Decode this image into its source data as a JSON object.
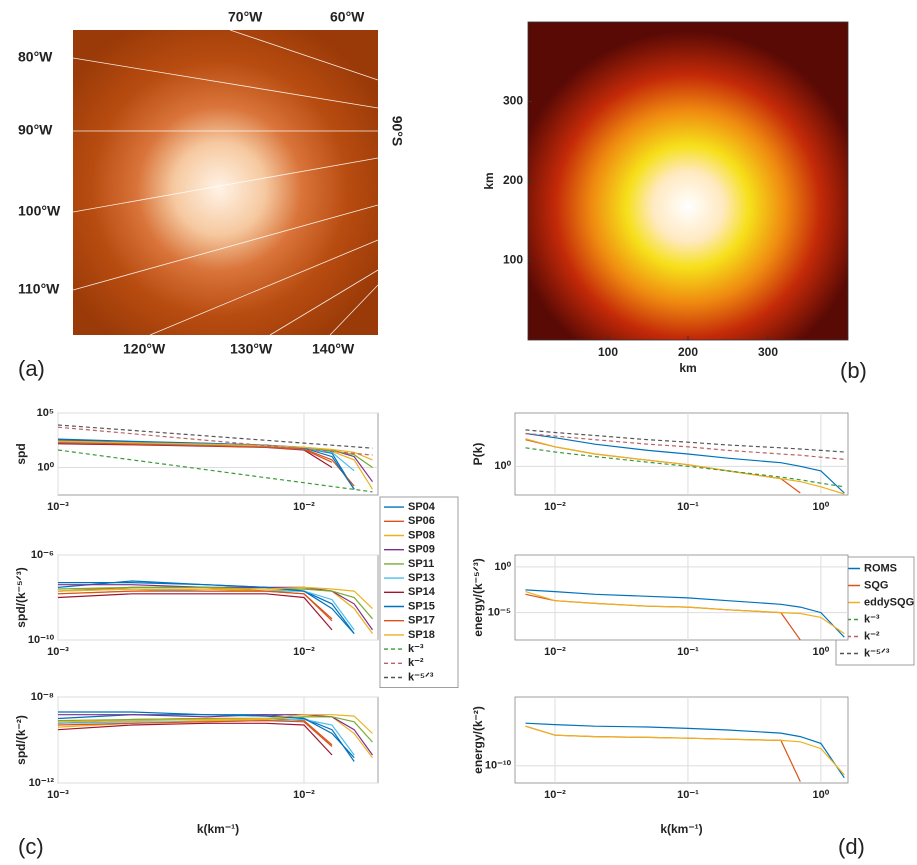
{
  "chart_data": [
    {
      "type": "map",
      "panel_label": "(a)",
      "labels": [
        "70°W",
        "60°W",
        "80°W",
        "90°W",
        "90°S",
        "100°W",
        "110°W",
        "120°W",
        "130°W",
        "140°W"
      ]
    },
    {
      "type": "heatmap",
      "panel_label": "(b)",
      "xlabel": "km",
      "ylabel": "km",
      "xlim": [
        0,
        400
      ],
      "ylim": [
        0,
        400
      ],
      "xticks": [
        100,
        200,
        300
      ],
      "yticks": [
        100,
        200,
        300
      ]
    },
    {
      "type": "line",
      "xlog": true,
      "ylog": true,
      "grid": true,
      "ylabel": "spd",
      "legend": "outside right",
      "xlim": [
        0.001,
        0.02
      ],
      "ylim": [
        0.003,
        100000
      ],
      "xticks": [
        {
          "value": 0.001,
          "label": "10⁻³"
        },
        {
          "value": 0.01,
          "label": "10⁻²"
        }
      ],
      "yticks": [
        {
          "value": 1,
          "label": "10⁰"
        },
        {
          "value": 100000,
          "label": "10⁵"
        }
      ],
      "x": [
        0.001,
        0.002,
        0.004,
        0.007,
        0.01,
        0.013,
        0.016,
        0.019
      ],
      "series": [
        {
          "name": "SP04",
          "color": "#0072BD",
          "values": [
            300,
            200,
            150,
            100,
            60,
            20,
            0.01,
            null
          ]
        },
        {
          "name": "SP06",
          "color": "#D95319",
          "values": [
            250,
            180,
            130,
            90,
            50,
            5,
            0.02,
            null
          ]
        },
        {
          "name": "SP08",
          "color": "#EDB120",
          "values": [
            200,
            150,
            110,
            80,
            50,
            30,
            5,
            0.01
          ]
        },
        {
          "name": "SP09",
          "color": "#7E2F8E",
          "values": [
            350,
            220,
            160,
            110,
            70,
            40,
            10,
            0.05
          ]
        },
        {
          "name": "SP11",
          "color": "#77AC30",
          "values": [
            280,
            190,
            140,
            95,
            60,
            35,
            15,
            1
          ]
        },
        {
          "name": "SP13",
          "color": "#4DBEEE",
          "values": [
            220,
            160,
            120,
            85,
            55,
            25,
            0.5,
            null
          ]
        },
        {
          "name": "SP14",
          "color": "#A2142F",
          "values": [
            150,
            120,
            90,
            70,
            40,
            1,
            null,
            null
          ]
        },
        {
          "name": "SP15",
          "color": "#0072BD",
          "values": [
            400,
            250,
            170,
            110,
            60,
            10,
            0.01,
            null
          ]
        },
        {
          "name": "SP17",
          "color": "#D95319",
          "values": [
            180,
            140,
            100,
            75,
            45,
            3,
            null,
            null
          ]
        },
        {
          "name": "SP18",
          "color": "#EDB120",
          "values": [
            260,
            190,
            140,
            100,
            70,
            45,
            25,
            5
          ]
        },
        {
          "name": "k⁻³",
          "color": "#3a9a3a",
          "style": "dashed",
          "values": [
            40,
            5,
            0.625,
            0.117,
            0.04,
            0.0182,
            0.00977,
            0.00583
          ]
        },
        {
          "name": "k⁻²",
          "color": "#c06060",
          "style": "dashed",
          "values": [
            5000,
            1250,
            312.5,
            102.04,
            50,
            29.59,
            19.53,
            13.85
          ]
        },
        {
          "name": "k⁻⁵ᐟ³",
          "color": "#555555",
          "style": "dashed",
          "values": [
            8000,
            2520,
            794,
            312.5,
            172.3,
            111,
            78.7,
            59.3
          ]
        }
      ]
    },
    {
      "type": "line",
      "xlog": true,
      "ylog": true,
      "grid": true,
      "ylabel": "spd/(k⁻⁵ᐟ³)",
      "xlim": [
        0.001,
        0.02
      ],
      "ylim": [
        1e-10,
        1e-06
      ],
      "xticks": [
        {
          "value": 0.001,
          "label": "10⁻³"
        },
        {
          "value": 0.01,
          "label": "10⁻²"
        }
      ],
      "yticks": [
        {
          "value": 1e-10,
          "label": "10⁻¹⁰"
        },
        {
          "value": 1e-06,
          "label": "10⁻⁶"
        }
      ],
      "x": [
        0.001,
        0.002,
        0.004,
        0.007,
        0.01,
        0.013,
        0.016,
        0.019
      ],
      "series": [
        {
          "color": "#0072BD",
          "values": [
            3e-08,
            6e-08,
            4e-08,
            3e-08,
            2e-08,
            5e-09,
            2e-10,
            null
          ]
        },
        {
          "color": "#D95319",
          "values": [
            2e-08,
            3e-08,
            3e-08,
            2e-08,
            1.5e-08,
            1e-09,
            null,
            null
          ]
        },
        {
          "color": "#EDB120",
          "values": [
            1.5e-08,
            2e-08,
            2.5e-08,
            2e-08,
            2.5e-08,
            2e-08,
            3e-09,
            2e-10
          ]
        },
        {
          "color": "#7E2F8E",
          "values": [
            4e-08,
            4e-08,
            3e-08,
            3e-08,
            3e-08,
            2e-08,
            5e-09,
            3e-10
          ]
        },
        {
          "color": "#77AC30",
          "values": [
            2.5e-08,
            3e-08,
            3e-08,
            2.5e-08,
            2.5e-08,
            2e-08,
            1e-08,
            1e-09
          ]
        },
        {
          "color": "#4DBEEE",
          "values": [
            2e-08,
            2.5e-08,
            2e-08,
            2e-08,
            2e-08,
            8e-09,
            3e-10,
            null
          ]
        },
        {
          "color": "#A2142F",
          "values": [
            1e-08,
            1.5e-08,
            1.5e-08,
            1.5e-08,
            1e-08,
            3e-10,
            null,
            null
          ]
        },
        {
          "color": "#0072BD",
          "values": [
            5e-08,
            5e-08,
            4e-08,
            3e-08,
            2e-08,
            3e-09,
            2e-10,
            null
          ]
        },
        {
          "color": "#D95319",
          "values": [
            1.5e-08,
            2e-08,
            2e-08,
            2e-08,
            1.5e-08,
            8e-10,
            null,
            null
          ]
        },
        {
          "color": "#EDB120",
          "values": [
            2e-08,
            2.5e-08,
            2.5e-08,
            2.5e-08,
            3e-08,
            2.5e-08,
            2e-08,
            3e-09
          ]
        }
      ]
    },
    {
      "type": "line",
      "xlog": true,
      "ylog": true,
      "grid": true,
      "ylabel": "spd/(k⁻²)",
      "xlabel": "k(km⁻¹)",
      "panel_label": "(c)",
      "xlim": [
        0.001,
        0.02
      ],
      "ylim": [
        1e-12,
        1e-08
      ],
      "xticks": [
        {
          "value": 0.001,
          "label": "10⁻³"
        },
        {
          "value": 0.01,
          "label": "10⁻²"
        }
      ],
      "yticks": [
        {
          "value": 1e-12,
          "label": "10⁻¹²"
        },
        {
          "value": 1e-08,
          "label": "10⁻⁸"
        }
      ],
      "x": [
        0.001,
        0.002,
        0.004,
        0.007,
        0.01,
        0.013,
        0.016,
        0.019
      ],
      "series": [
        {
          "color": "#0072BD",
          "values": [
            1e-09,
            1.5e-09,
            1.5e-09,
            1.5e-09,
            1e-09,
            3e-10,
            1e-11,
            null
          ]
        },
        {
          "color": "#D95319",
          "values": [
            6e-10,
            9e-10,
            1e-09,
            1e-09,
            8e-10,
            6e-11,
            null,
            null
          ]
        },
        {
          "color": "#EDB120",
          "values": [
            4e-10,
            6e-10,
            8e-10,
            9e-10,
            1.2e-09,
            1.2e-09,
            2e-10,
            1.5e-11
          ]
        },
        {
          "color": "#7E2F8E",
          "values": [
            1.5e-09,
            1.5e-09,
            1.2e-09,
            1.5e-09,
            1.5e-09,
            1.2e-09,
            3e-10,
            2e-11
          ]
        },
        {
          "color": "#77AC30",
          "values": [
            8e-10,
            9e-10,
            1e-09,
            1e-09,
            1.2e-09,
            1.2e-09,
            7e-10,
            8e-11
          ]
        },
        {
          "color": "#4DBEEE",
          "values": [
            6e-10,
            7e-10,
            7e-10,
            8e-10,
            9e-10,
            5e-10,
            2e-11,
            null
          ]
        },
        {
          "color": "#A2142F",
          "values": [
            3e-10,
            5e-10,
            6e-10,
            6e-10,
            5e-10,
            2e-11,
            null,
            null
          ]
        },
        {
          "color": "#0072BD",
          "values": [
            2e-09,
            2e-09,
            1.5e-09,
            1.3e-09,
            1e-09,
            2e-10,
            1.5e-11,
            null
          ]
        },
        {
          "color": "#D95319",
          "values": [
            5e-10,
            6e-10,
            7e-10,
            8e-10,
            7e-10,
            5e-11,
            null,
            null
          ]
        },
        {
          "color": "#EDB120",
          "values": [
            7e-10,
            8e-10,
            9e-10,
            1e-09,
            1.5e-09,
            1.5e-09,
            1.3e-09,
            2e-10
          ]
        }
      ]
    },
    {
      "type": "line",
      "xlog": true,
      "ylog": true,
      "grid": true,
      "ylabel": "P(k)",
      "legend": "outside right",
      "xlim": [
        0.005,
        1.6
      ],
      "ylim": [
        0.04,
        400
      ],
      "xticks": [
        {
          "value": 0.01,
          "label": "10⁻²"
        },
        {
          "value": 0.1,
          "label": "10⁻¹"
        },
        {
          "value": 1,
          "label": "10⁰"
        }
      ],
      "yticks": [
        {
          "value": 1,
          "label": "10⁰"
        }
      ],
      "x": [
        0.006,
        0.01,
        0.02,
        0.05,
        0.1,
        0.2,
        0.5,
        0.7,
        1,
        1.5
      ],
      "series": [
        {
          "name": "ROMS",
          "color": "#0072BD",
          "values": [
            40,
            25,
            12,
            6,
            4,
            2.5,
            1.5,
            1,
            0.6,
            0.05
          ]
        },
        {
          "name": "SQG",
          "color": "#D95319",
          "values": [
            20,
            9,
            4,
            2,
            1.2,
            0.6,
            0.25,
            0.05,
            null,
            null
          ]
        },
        {
          "name": "eddySQG",
          "color": "#EDB120",
          "values": [
            22,
            9,
            4,
            2,
            1.2,
            0.6,
            0.25,
            0.18,
            0.1,
            0.045
          ]
        },
        {
          "name": "k⁻³",
          "color": "#3a9a3a",
          "style": "dashed",
          "values": [
            8,
            5,
            3,
            1.6,
            1,
            0.6,
            0.3,
            0.22,
            0.15,
            0.1
          ]
        },
        {
          "name": "k⁻²",
          "color": "#c06060",
          "style": "dashed",
          "values": [
            40,
            30,
            20,
            12,
            9,
            6,
            4,
            3.5,
            2.8,
            2.2
          ]
        },
        {
          "name": "k⁻⁵ᐟ³",
          "color": "#555555",
          "style": "dashed",
          "values": [
            60,
            45,
            32,
            20,
            15,
            11,
            8,
            7,
            6,
            5
          ]
        }
      ]
    },
    {
      "type": "line",
      "xlog": true,
      "ylog": true,
      "grid": true,
      "ylabel": "energy/(k⁻⁵ᐟ³)",
      "xlim": [
        0.005,
        1.6
      ],
      "ylim": [
        1e-08,
        20
      ],
      "xticks": [
        {
          "value": 0.01,
          "label": "10⁻²"
        },
        {
          "value": 0.1,
          "label": "10⁻¹"
        },
        {
          "value": 1,
          "label": "10⁰"
        }
      ],
      "yticks": [
        {
          "value": 1e-05,
          "label": "10⁻⁵"
        },
        {
          "value": 1,
          "label": "10⁰"
        }
      ],
      "x": [
        0.006,
        0.01,
        0.02,
        0.05,
        0.1,
        0.2,
        0.5,
        0.7,
        1,
        1.5
      ],
      "series": [
        {
          "color": "#0072BD",
          "values": [
            0.003,
            0.002,
            0.001,
            0.0006,
            0.0004,
            0.0002,
            8e-05,
            4e-05,
            1e-05,
            2e-08
          ]
        },
        {
          "color": "#D95319",
          "values": [
            0.001,
            0.0002,
            0.0001,
            5e-05,
            4e-05,
            2e-05,
            1e-05,
            1e-08,
            null,
            null
          ]
        },
        {
          "color": "#EDB120",
          "values": [
            0.002,
            0.0002,
            0.0001,
            5e-05,
            4e-05,
            2e-05,
            1e-05,
            8e-06,
            3e-06,
            5e-08
          ]
        }
      ]
    },
    {
      "type": "line",
      "xlog": true,
      "ylog": true,
      "grid": true,
      "ylabel": "energy/(k⁻²)",
      "xlabel": "k(km⁻¹)",
      "panel_label": "(d)",
      "xlim": [
        0.005,
        1.6
      ],
      "ylim": [
        1e-11,
        1e-06
      ],
      "xticks": [
        {
          "value": 0.01,
          "label": "10⁻²"
        },
        {
          "value": 0.1,
          "label": "10⁻¹"
        },
        {
          "value": 1,
          "label": "10⁰"
        }
      ],
      "yticks": [
        {
          "value": 1e-10,
          "label": "10⁻¹⁰"
        }
      ],
      "x": [
        0.006,
        0.01,
        0.02,
        0.05,
        0.1,
        0.2,
        0.5,
        0.7,
        1,
        1.5
      ],
      "series": [
        {
          "color": "#0072BD",
          "values": [
            3e-08,
            2.5e-08,
            2e-08,
            1.8e-08,
            1.5e-08,
            1.2e-08,
            8e-09,
            5e-09,
            2e-09,
            2e-11
          ]
        },
        {
          "color": "#D95319",
          "values": [
            2e-08,
            6e-09,
            5e-09,
            4.5e-09,
            4e-09,
            3.5e-09,
            3e-09,
            1.2e-11,
            null,
            null
          ]
        },
        {
          "color": "#EDB120",
          "values": [
            2e-08,
            6e-09,
            5e-09,
            4.5e-09,
            4e-09,
            3.5e-09,
            3e-09,
            2.5e-09,
            1e-09,
            3e-11
          ]
        }
      ]
    }
  ]
}
